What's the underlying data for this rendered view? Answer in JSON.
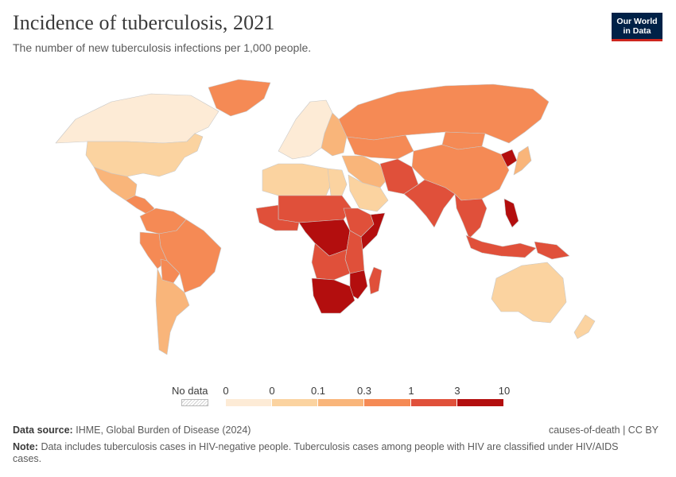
{
  "header": {
    "title": "Incidence of tuberculosis, 2021",
    "subtitle": "The number of new tuberculosis infections per 1,000 people."
  },
  "logo": {
    "line1": "Our World",
    "line2": "in Data"
  },
  "legend": {
    "no_data_label": "No data",
    "ticks": [
      "0",
      "0",
      "0.1",
      "0.3",
      "1",
      "3",
      "10"
    ],
    "bins": [
      {
        "from": "0",
        "to": "0",
        "color": "#fdebd6"
      },
      {
        "from": "0",
        "to": "0.1",
        "color": "#fbd3a0"
      },
      {
        "from": "0.1",
        "to": "0.3",
        "color": "#f9b57a"
      },
      {
        "from": "0.3",
        "to": "1",
        "color": "#f58a55"
      },
      {
        "from": "1",
        "to": "3",
        "color": "#e0503a"
      },
      {
        "from": "3",
        "to": "10",
        "color": "#b30e0e"
      }
    ]
  },
  "footer": {
    "source_label": "Data source:",
    "source_text": "IHME, Global Burden of Disease (2024)",
    "credit": "causes-of-death | CC BY",
    "note_label": "Note:",
    "note_text": "Data includes tuberculosis cases in HIV-negative people. Tuberculosis cases among people with HIV are classified under HIV/AIDS cases."
  },
  "map": {
    "regions": [
      {
        "name": "Canada",
        "bin": 0
      },
      {
        "name": "United States",
        "bin": 1
      },
      {
        "name": "Greenland",
        "bin": 3
      },
      {
        "name": "Mexico",
        "bin": 2
      },
      {
        "name": "Central America",
        "bin": 3
      },
      {
        "name": "Colombia & Venezuela",
        "bin": 3
      },
      {
        "name": "Brazil",
        "bin": 3
      },
      {
        "name": "Peru",
        "bin": 3
      },
      {
        "name": "Bolivia",
        "bin": 3
      },
      {
        "name": "Southern Cone",
        "bin": 2
      },
      {
        "name": "Western Europe",
        "bin": 0
      },
      {
        "name": "Eastern Europe",
        "bin": 2
      },
      {
        "name": "Russia",
        "bin": 3
      },
      {
        "name": "Kazakhstan",
        "bin": 3
      },
      {
        "name": "Mongolia",
        "bin": 3
      },
      {
        "name": "China",
        "bin": 3
      },
      {
        "name": "North Korea",
        "bin": 5
      },
      {
        "name": "Japan",
        "bin": 2
      },
      {
        "name": "North Africa",
        "bin": 1
      },
      {
        "name": "Egypt",
        "bin": 1
      },
      {
        "name": "Middle East",
        "bin": 2
      },
      {
        "name": "Saudi Arabia",
        "bin": 1
      },
      {
        "name": "Pakistan & Afghanistan",
        "bin": 4
      },
      {
        "name": "India",
        "bin": 4
      },
      {
        "name": "Southeast Asia",
        "bin": 4
      },
      {
        "name": "Philippines",
        "bin": 5
      },
      {
        "name": "Indonesia",
        "bin": 4
      },
      {
        "name": "Papua New Guinea",
        "bin": 4
      },
      {
        "name": "Australia",
        "bin": 1
      },
      {
        "name": "New Zealand",
        "bin": 1
      },
      {
        "name": "Sahel",
        "bin": 4
      },
      {
        "name": "West Africa",
        "bin": 4
      },
      {
        "name": "Central Africa",
        "bin": 5
      },
      {
        "name": "Horn of Africa",
        "bin": 4
      },
      {
        "name": "Somalia",
        "bin": 5
      },
      {
        "name": "East Africa",
        "bin": 4
      },
      {
        "name": "Angola & Zambia",
        "bin": 4
      },
      {
        "name": "Mozambique",
        "bin": 5
      },
      {
        "name": "Southern Africa",
        "bin": 5
      },
      {
        "name": "Madagascar",
        "bin": 4
      }
    ]
  }
}
